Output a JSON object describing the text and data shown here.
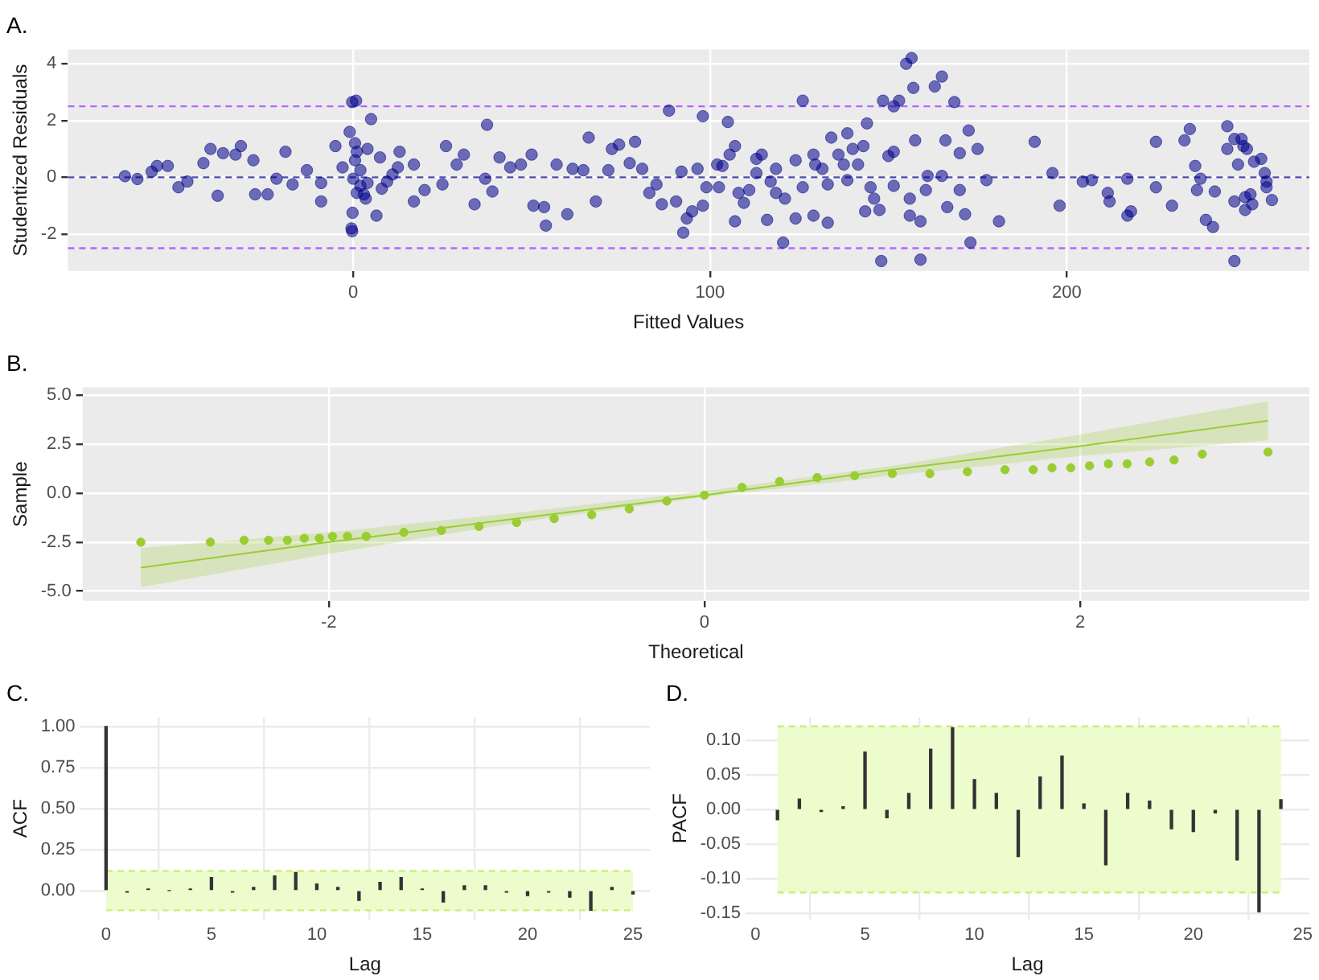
{
  "chart_data": [
    {
      "type": "scatter",
      "title": "A.",
      "xlabel": "Fitted Values",
      "ylabel": "Studentized Residuals",
      "color": "#00008b",
      "marker": "circle",
      "grid": true,
      "x": [
        -64,
        -60.5,
        -56.5,
        -55,
        -52,
        -49,
        -46.5,
        -42,
        -40,
        -38,
        -36.5,
        -33,
        -31.5,
        -28,
        -27.5,
        -24,
        -21.5,
        -19,
        -17,
        -13,
        -9,
        -9,
        -5,
        -3,
        -1,
        -0.5,
        -0.3,
        -0.2,
        0,
        0.5,
        0.8,
        -0.3,
        0.5,
        1,
        2,
        3.5,
        4,
        5,
        6.5,
        7.5,
        9.5,
        13,
        12.5,
        17,
        17,
        20,
        26,
        25,
        29,
        31,
        34,
        37,
        37.5,
        39,
        41,
        44,
        47,
        50,
        50.5,
        53.5,
        54,
        57,
        60,
        61.5,
        64.5,
        66,
        68,
        71.5,
        72.5,
        74.5,
        77.5,
        79,
        81,
        85,
        86.5,
        2,
        3,
        1,
        4,
        8,
        11,
        83,
        88.5,
        90.5,
        92,
        92.5,
        93.5,
        95,
        96.5,
        98,
        98,
        99,
        102,
        102.5,
        103.5,
        105,
        105.5,
        107,
        107,
        108,
        109.5,
        111,
        113,
        113,
        114.5,
        116,
        117,
        118.5,
        118.5,
        120.5,
        121,
        124,
        124,
        126,
        126,
        129,
        129,
        129.5,
        131.5,
        133,
        133,
        134,
        136,
        137.5,
        138.5,
        138.5,
        140,
        141.5,
        143,
        143.5,
        144,
        145,
        146,
        147.5,
        148,
        148.5,
        150,
        151.5,
        151.5,
        153,
        151.5,
        155,
        156.5,
        156,
        156,
        157,
        157.5,
        159,
        159,
        160.5,
        161,
        163,
        165,
        165,
        166,
        166.5,
        168.5,
        170,
        170,
        171.5,
        172.5,
        173,
        175,
        177.5,
        181,
        191,
        196,
        198,
        204.5,
        207,
        211.5,
        212,
        217,
        218,
        217,
        225,
        225,
        229.5,
        233,
        234.5,
        236,
        236.5,
        237.5,
        239,
        241,
        241.5,
        245,
        245,
        247,
        247,
        247,
        248,
        249,
        249.5,
        250,
        250,
        250.5,
        251.5,
        252,
        252.5,
        254.5,
        255.5,
        256,
        256,
        257.5
      ],
      "values": [
        0.04,
        -0.06,
        0.2,
        0.4,
        0.4,
        -0.35,
        -0.15,
        0.5,
        1.0,
        -0.65,
        0.85,
        0.8,
        1.1,
        0.6,
        -0.6,
        -0.6,
        -0.05,
        0.9,
        -0.25,
        0.25,
        -0.2,
        -0.85,
        1.1,
        0.35,
        1.6,
        -1.8,
        -1.9,
        -1.25,
        -0.05,
        0.6,
        2.7,
        2.65,
        1.2,
        -0.55,
        0.25,
        -0.75,
        1.0,
        2.05,
        -1.35,
        0.7,
        -0.15,
        0.9,
        0.35,
        -0.85,
        0.45,
        -0.45,
        1.1,
        -0.25,
        0.45,
        0.8,
        -0.95,
        -0.05,
        1.85,
        -0.5,
        0.7,
        0.35,
        0.45,
        0.8,
        -1.0,
        -1.05,
        -1.7,
        0.45,
        -1.3,
        0.3,
        0.25,
        1.4,
        -0.85,
        0.25,
        1.0,
        1.15,
        0.5,
        1.25,
        0.3,
        -0.25,
        -0.95,
        -0.3,
        -0.6,
        0.9,
        -0.2,
        -0.4,
        0.1,
        -0.55,
        2.35,
        -0.85,
        0.2,
        -1.95,
        -1.45,
        -1.2,
        0.3,
        2.15,
        -1.0,
        -0.35,
        0.45,
        -0.35,
        0.4,
        1.95,
        0.8,
        1.1,
        -1.55,
        -0.55,
        -0.9,
        -0.45,
        0.15,
        0.65,
        0.8,
        -1.5,
        -0.15,
        0.3,
        -0.55,
        -2.3,
        -0.75,
        0.6,
        -1.45,
        2.7,
        -0.35,
        0.8,
        -1.35,
        0.45,
        0.3,
        -0.25,
        -1.6,
        1.4,
        0.8,
        0.45,
        1.55,
        -0.1,
        1.0,
        0.45,
        1.1,
        -1.2,
        1.9,
        -0.35,
        -0.75,
        -1.15,
        -2.95,
        2.7,
        0.75,
        0.9,
        2.5,
        2.7,
        -0.3,
        4.0,
        4.2,
        -0.75,
        -1.35,
        3.15,
        1.3,
        -1.55,
        -2.9,
        -0.45,
        0.05,
        3.2,
        3.55,
        0.05,
        1.3,
        -1.05,
        2.65,
        0.85,
        -0.45,
        -1.3,
        1.65,
        -2.3,
        1.0,
        -0.1,
        -1.55,
        1.25,
        0.15,
        -1.0,
        -0.15,
        -0.1,
        -0.55,
        -0.85,
        -1.35,
        -1.2,
        -0.05,
        -0.35,
        1.25,
        -1.0,
        1.3,
        1.7,
        0.4,
        -0.45,
        -0.05,
        -1.5,
        -1.75,
        -0.5,
        1.8,
        1.0,
        -0.85,
        -2.95,
        1.35,
        0.45,
        1.35,
        1.1,
        -0.7,
        -1.15,
        1.0,
        -0.6,
        -0.95,
        0.55,
        0.65,
        0.15,
        -0.15,
        -0.35,
        -0.8
      ],
      "xlim": [
        -80,
        268
      ],
      "ylim": [
        -3.3,
        4.5
      ],
      "xticks": [
        0,
        100,
        200
      ],
      "yticks": [
        -2,
        0,
        2,
        4
      ],
      "ref_lines": [
        {
          "axis": "y",
          "value": 2.5,
          "color": "#b266ff",
          "line_style": "dashed"
        },
        {
          "axis": "y",
          "value": 0,
          "color": "#4b4baf",
          "line_style": "dashed"
        },
        {
          "axis": "y",
          "value": -2.5,
          "color": "#b266ff",
          "line_style": "dashed"
        }
      ]
    },
    {
      "type": "scatter",
      "title": "B.",
      "xlabel": "Theoretical",
      "ylabel": "Sample",
      "grid": true,
      "series": [
        {
          "type": "scatter",
          "marker": "circle",
          "color": "#9acd32",
          "x": [
            -3.0,
            -2.63,
            -2.45,
            -2.32,
            -2.22,
            -2.13,
            -2.05,
            -1.98,
            -1.9,
            -1.8,
            -1.6,
            -1.4,
            -1.2,
            -1.0,
            -0.8,
            -0.6,
            -0.4,
            -0.2,
            0,
            0.2,
            0.4,
            0.6,
            0.8,
            1.0,
            1.2,
            1.4,
            1.6,
            1.75,
            1.85,
            1.95,
            2.05,
            2.15,
            2.25,
            2.37,
            2.5,
            2.65,
            3.0
          ],
          "values": [
            -2.5,
            -2.5,
            -2.4,
            -2.4,
            -2.4,
            -2.3,
            -2.3,
            -2.2,
            -2.2,
            -2.2,
            -2.0,
            -1.9,
            -1.7,
            -1.5,
            -1.3,
            -1.1,
            -0.8,
            -0.4,
            -0.1,
            0.3,
            0.6,
            0.8,
            0.9,
            1.0,
            1.0,
            1.1,
            1.2,
            1.2,
            1.3,
            1.3,
            1.4,
            1.5,
            1.5,
            1.6,
            1.7,
            2.0,
            2.1
          ]
        },
        {
          "type": "line",
          "marker": "none",
          "color": "#9acd32",
          "x": [
            -3,
            -2,
            -1,
            0,
            1,
            2,
            3
          ],
          "values": [
            -3.8,
            -2.5,
            -1.3,
            -0.1,
            1.2,
            2.4,
            3.7
          ],
          "lower": [
            -4.8,
            -3.1,
            -1.5,
            -0.2,
            0.9,
            1.9,
            2.7
          ],
          "upper": [
            -2.8,
            -2.0,
            -1.0,
            0.1,
            1.4,
            3.0,
            4.7
          ]
        }
      ],
      "xlim": [
        -3.31,
        3.22
      ],
      "ylim": [
        -5.5,
        5.4
      ],
      "xticks": [
        -2,
        0,
        2
      ],
      "yticks": [
        {
          "value": -5,
          "label": "-5.0"
        },
        {
          "value": -2.5,
          "label": "-2.5"
        },
        {
          "value": 0,
          "label": "0.0"
        },
        {
          "value": 2.5,
          "label": "2.5"
        },
        {
          "value": 5,
          "label": "5.0"
        }
      ]
    },
    {
      "type": "bar",
      "title": "C.",
      "xlabel": "Lag",
      "ylabel": "ACF",
      "color": "#333333",
      "grid": true,
      "x": [
        0,
        1,
        2,
        3,
        4,
        5,
        6,
        7,
        8,
        9,
        10,
        11,
        12,
        13,
        14,
        15,
        16,
        17,
        18,
        19,
        20,
        21,
        22,
        23,
        24,
        25
      ],
      "values": [
        1.0,
        -0.01,
        0.01,
        0.0,
        0.01,
        0.08,
        -0.01,
        0.02,
        0.09,
        0.11,
        0.04,
        0.02,
        -0.06,
        0.05,
        0.08,
        0.01,
        -0.07,
        0.03,
        0.03,
        -0.01,
        -0.03,
        -0.01,
        -0.04,
        -0.12,
        0.02,
        -0.02
      ],
      "xlim": [
        -1.23,
        25.8
      ],
      "ylim": [
        -0.176,
        1.056
      ],
      "xticks": [
        0,
        5,
        10,
        15,
        20,
        25
      ],
      "yticks": [
        {
          "value": 0,
          "label": "0.00"
        },
        {
          "value": 0.25,
          "label": "0.25"
        },
        {
          "value": 0.5,
          "label": "0.50"
        },
        {
          "value": 0.75,
          "label": "0.75"
        },
        {
          "value": 1,
          "label": "1.00"
        }
      ],
      "bands": [
        {
          "axis": "y",
          "from": -0.12,
          "to": 0.12,
          "color": "#ecfccc"
        }
      ],
      "ref_lines": [
        {
          "axis": "y",
          "value": 0.12,
          "color": "#c9ef7a",
          "line_style": "dashed"
        },
        {
          "axis": "y",
          "value": -0.12,
          "color": "#c9ef7a",
          "line_style": "dashed"
        }
      ]
    },
    {
      "type": "bar",
      "title": "D.",
      "xlabel": "Lag",
      "ylabel": "PACF",
      "color": "#333333",
      "grid": true,
      "x": [
        1,
        2,
        3,
        4,
        5,
        6,
        7,
        8,
        9,
        10,
        11,
        12,
        13,
        14,
        15,
        16,
        17,
        18,
        19,
        20,
        21,
        22,
        23,
        24
      ],
      "values": [
        -0.015,
        0.015,
        -0.003,
        0.004,
        0.083,
        -0.012,
        0.023,
        0.087,
        0.118,
        0.043,
        0.023,
        -0.068,
        0.047,
        0.077,
        0.008,
        -0.08,
        0.023,
        0.012,
        -0.028,
        -0.032,
        -0.005,
        -0.073,
        -0.148,
        0.014
      ],
      "xlim": [
        -0.46,
        25.3
      ],
      "ylim": [
        -0.159,
        0.133
      ],
      "xticks": [
        0,
        5,
        10,
        15,
        20,
        25
      ],
      "yticks": [
        {
          "value": -0.15,
          "label": "-0.15"
        },
        {
          "value": -0.1,
          "label": "-0.10"
        },
        {
          "value": -0.05,
          "label": "-0.05"
        },
        {
          "value": 0,
          "label": "0.00"
        },
        {
          "value": 0.05,
          "label": "0.05"
        },
        {
          "value": 0.1,
          "label": "0.10"
        }
      ],
      "bands": [
        {
          "axis": "y",
          "from": -0.12,
          "to": 0.12,
          "color": "#ecfccc"
        }
      ],
      "ref_lines": [
        {
          "axis": "y",
          "value": 0.12,
          "color": "#c9ef7a",
          "line_style": "dashed"
        },
        {
          "axis": "y",
          "value": -0.12,
          "color": "#c9ef7a",
          "line_style": "dashed"
        }
      ]
    }
  ]
}
